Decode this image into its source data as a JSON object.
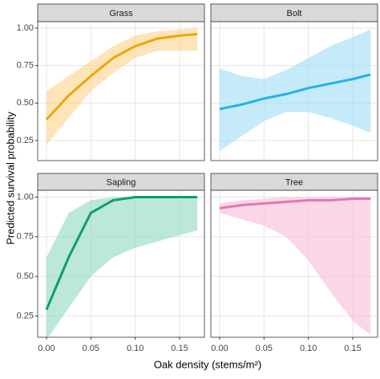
{
  "chart_data": {
    "type": "line",
    "xlabel": "Oak density (stems/m²)",
    "ylabel": "Predicted survival probability",
    "xlim": [
      -0.0099,
      0.178
    ],
    "ylim": [
      0.116,
      1.043
    ],
    "xticks": [
      {
        "value": 0,
        "label": "0.00"
      },
      {
        "value": 0.05,
        "label": "0.05"
      },
      {
        "value": 0.1,
        "label": "0.10"
      },
      {
        "value": 0.15,
        "label": "0.15"
      }
    ],
    "yticks": [
      {
        "value": 0.25,
        "label": "0.25"
      },
      {
        "value": 0.5,
        "label": "0.50"
      },
      {
        "value": 0.75,
        "label": "0.75"
      },
      {
        "value": 1,
        "label": "1.00"
      }
    ],
    "grid": true,
    "x": [
      0,
      0.025,
      0.05,
      0.075,
      0.1,
      0.125,
      0.15,
      0.17
    ],
    "facets": [
      {
        "title": "Grass",
        "color": "#f0a30a",
        "ribbon_color": "#fdd48a",
        "values": [
          0.39,
          0.55,
          0.68,
          0.8,
          0.88,
          0.93,
          0.95,
          0.96
        ],
        "lower": [
          0.22,
          0.4,
          0.58,
          0.7,
          0.8,
          0.85,
          0.85,
          0.85
        ],
        "upper": [
          0.58,
          0.68,
          0.78,
          0.88,
          0.95,
          0.98,
          0.99,
          1.0
        ]
      },
      {
        "title": "Bolt",
        "color": "#1eb4e6",
        "ribbon_color": "#9fdcf5",
        "values": [
          0.46,
          0.49,
          0.53,
          0.56,
          0.6,
          0.63,
          0.66,
          0.69
        ],
        "lower": [
          0.18,
          0.28,
          0.38,
          0.44,
          0.44,
          0.4,
          0.35,
          0.3
        ],
        "upper": [
          0.73,
          0.68,
          0.66,
          0.72,
          0.8,
          0.88,
          0.94,
          0.99
        ]
      },
      {
        "title": "Sapling",
        "color": "#0b9e72",
        "ribbon_color": "#8dd8bd",
        "values": [
          0.29,
          0.62,
          0.9,
          0.98,
          1.0,
          1.0,
          1.0,
          1.0
        ],
        "lower": [
          0.1,
          0.3,
          0.5,
          0.62,
          0.68,
          0.72,
          0.76,
          0.79
        ],
        "upper": [
          0.62,
          0.9,
          0.98,
          1.0,
          1.0,
          1.0,
          1.0,
          1.0
        ]
      },
      {
        "title": "Tree",
        "color": "#e377b0",
        "ribbon_color": "#f7bdd9",
        "values": [
          0.93,
          0.95,
          0.96,
          0.97,
          0.98,
          0.98,
          0.99,
          0.99
        ],
        "lower": [
          0.9,
          0.86,
          0.82,
          0.75,
          0.6,
          0.4,
          0.22,
          0.13
        ],
        "upper": [
          0.96,
          0.98,
          0.99,
          1.0,
          1.0,
          1.0,
          1.0,
          1.0
        ]
      }
    ]
  }
}
